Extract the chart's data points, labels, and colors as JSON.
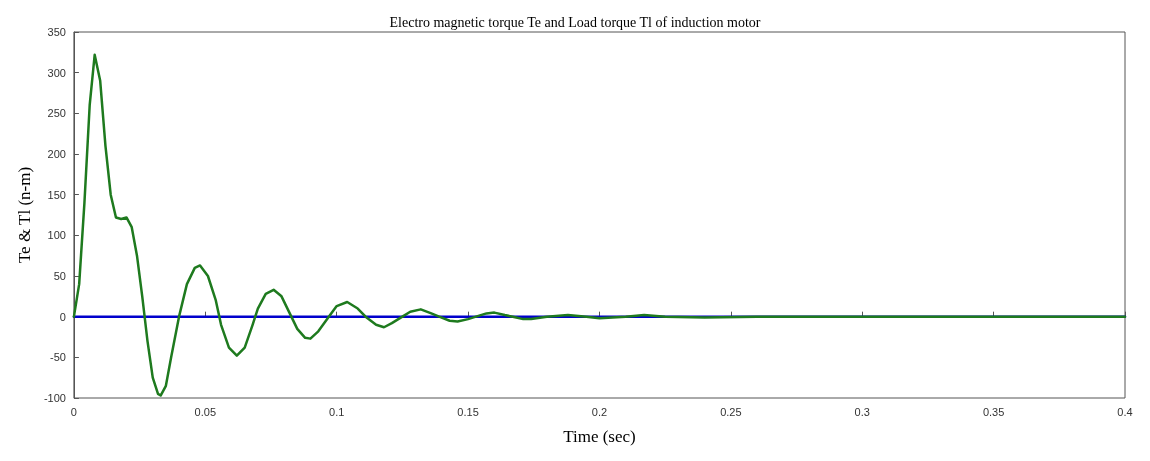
{
  "chart_data": {
    "type": "line",
    "title": "Electro magnetic torque Te and Load torque Tl of induction motor",
    "xlabel": "Time (sec)",
    "ylabel": "Te & Tl (n-m)",
    "xlim": [
      0,
      0.4
    ],
    "xticks": [
      0,
      0.05,
      0.1,
      0.15,
      0.2,
      0.25,
      0.3,
      0.35,
      0.4
    ],
    "ylim": [
      -100,
      350
    ],
    "yticks": [
      -100,
      -50,
      0,
      50,
      100,
      150,
      200,
      250,
      300,
      350
    ],
    "grid": false,
    "marker": "none",
    "line_style": "solid",
    "series": [
      {
        "color": "#0000cc",
        "x": [
          0,
          0.4
        ],
        "values": [
          0,
          0
        ]
      },
      {
        "color": "#1e7a1e",
        "x": [
          0,
          0.002,
          0.004,
          0.006,
          0.0079,
          0.01,
          0.012,
          0.014,
          0.016,
          0.018,
          0.02,
          0.022,
          0.024,
          0.026,
          0.028,
          0.03,
          0.032,
          0.033,
          0.035,
          0.037,
          0.04,
          0.043,
          0.046,
          0.048,
          0.051,
          0.054,
          0.056,
          0.059,
          0.062,
          0.065,
          0.068,
          0.07,
          0.073,
          0.076,
          0.079,
          0.082,
          0.085,
          0.088,
          0.09,
          0.093,
          0.097,
          0.1,
          0.104,
          0.108,
          0.111,
          0.115,
          0.118,
          0.121,
          0.125,
          0.128,
          0.132,
          0.136,
          0.139,
          0.143,
          0.146,
          0.15,
          0.153,
          0.157,
          0.16,
          0.164,
          0.167,
          0.171,
          0.174,
          0.18,
          0.188,
          0.195,
          0.2,
          0.21,
          0.217,
          0.225,
          0.24,
          0.26,
          0.3,
          0.35,
          0.4
        ],
        "values": [
          0,
          40,
          140,
          260,
          322,
          290,
          210,
          150,
          122,
          120,
          122,
          110,
          75,
          25,
          -30,
          -75,
          -95,
          -97,
          -85,
          -50,
          0,
          40,
          60,
          63,
          50,
          20,
          -10,
          -38,
          -48,
          -38,
          -10,
          10,
          28,
          33,
          25,
          5,
          -15,
          -26,
          -27,
          -18,
          0,
          13,
          18,
          10,
          0,
          -10,
          -13,
          -8,
          0,
          6,
          9,
          4,
          0,
          -5,
          -6,
          -3,
          0,
          4,
          5,
          2,
          0,
          -3,
          -3,
          0,
          2,
          0,
          -2,
          0,
          2,
          0,
          -1,
          0,
          0,
          0,
          0
        ]
      }
    ]
  }
}
